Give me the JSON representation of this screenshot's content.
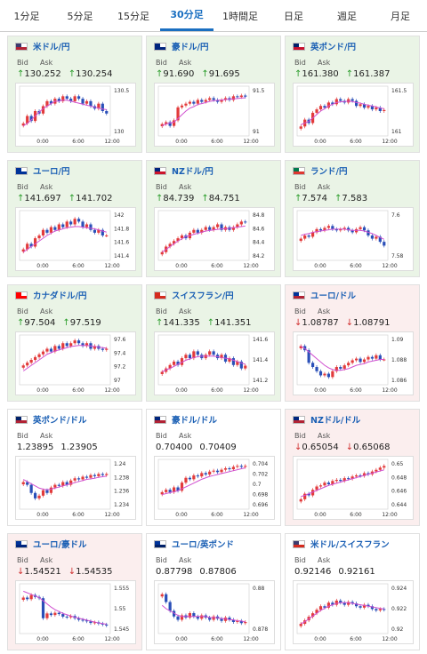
{
  "tabs": [
    {
      "label": "1分足",
      "active": false
    },
    {
      "label": "5分足",
      "active": false
    },
    {
      "label": "15分足",
      "active": false
    },
    {
      "label": "30分足",
      "active": true
    },
    {
      "label": "1時間足",
      "active": false
    },
    {
      "label": "日足",
      "active": false
    },
    {
      "label": "週足",
      "active": false
    },
    {
      "label": "月足",
      "active": false
    }
  ],
  "labels": {
    "bid": "Bid",
    "ask": "Ask"
  },
  "colors": {
    "up": "#2a9d2a",
    "down": "#d03030",
    "link": "#1a5fb4",
    "candle_up": "#e23b3b",
    "candle_down": "#2a4fb8",
    "ma": "#d050d0",
    "ma2": "#3aa0ff"
  },
  "cards": [
    {
      "pair": "米ドル/円",
      "trend": "up",
      "bid": "130.252",
      "ask": "130.254",
      "y_ticks": [
        "130.5",
        "130"
      ],
      "x_ticks": [
        "0:00",
        "6:00",
        "12:00"
      ],
      "flag": [
        "#3c3b6e",
        "#b22234"
      ],
      "chart_data": {
        "type": "candlestick",
        "ylim": [
          129.85,
          130.75
        ],
        "close": [
          130.05,
          130.2,
          130.1,
          130.3,
          130.25,
          130.4,
          130.5,
          130.45,
          130.55,
          130.5,
          130.6,
          130.55,
          130.5,
          130.6,
          130.55,
          130.45,
          130.5,
          130.4,
          130.35,
          130.45,
          130.3,
          130.25
        ],
        "ma": [
          130.0,
          130.05,
          130.12,
          130.2,
          130.28,
          130.35,
          130.4,
          130.45,
          130.5,
          130.5,
          130.52,
          130.52,
          130.5,
          130.48,
          130.46,
          130.44,
          130.42,
          130.4,
          130.38,
          130.36,
          130.34,
          130.33
        ]
      }
    },
    {
      "pair": "豪ドル/円",
      "trend": "up",
      "bid": "91.690",
      "ask": "91.695",
      "y_ticks": [
        "91.5",
        "91"
      ],
      "x_ticks": [
        "0:00",
        "6:00",
        "12:00"
      ],
      "flag": [
        "#00247d",
        "#00247d"
      ],
      "chart_data": {
        "type": "candlestick",
        "ylim": [
          90.7,
          91.9
        ],
        "close": [
          90.95,
          91.0,
          90.9,
          91.05,
          91.4,
          91.45,
          91.5,
          91.55,
          91.5,
          91.6,
          91.55,
          91.6,
          91.65,
          91.6,
          91.55,
          91.6,
          91.65,
          91.6,
          91.7,
          91.68,
          91.72,
          91.69
        ],
        "ma": [
          90.9,
          90.95,
          90.98,
          91.0,
          91.1,
          91.2,
          91.3,
          91.38,
          91.42,
          91.48,
          91.5,
          91.53,
          91.56,
          91.58,
          91.59,
          91.6,
          91.61,
          91.62,
          91.63,
          91.64,
          91.65,
          91.66
        ]
      }
    },
    {
      "pair": "英ポンド/円",
      "trend": "up",
      "bid": "161.380",
      "ask": "161.387",
      "y_ticks": [
        "161.5",
        "161"
      ],
      "x_ticks": [
        "0:00",
        "6:00",
        "12:00"
      ],
      "flag": [
        "#012169",
        "#c8102e"
      ],
      "chart_data": {
        "type": "candlestick",
        "ylim": [
          160.7,
          162.0
        ],
        "close": [
          160.9,
          161.1,
          161.0,
          161.3,
          161.4,
          161.5,
          161.45,
          161.6,
          161.55,
          161.7,
          161.65,
          161.6,
          161.7,
          161.65,
          161.5,
          161.55,
          161.45,
          161.5,
          161.4,
          161.45,
          161.35,
          161.38
        ],
        "ma": [
          160.95,
          161.0,
          161.05,
          161.15,
          161.25,
          161.35,
          161.42,
          161.5,
          161.55,
          161.6,
          161.62,
          161.63,
          161.64,
          161.63,
          161.6,
          161.58,
          161.55,
          161.52,
          161.5,
          161.47,
          161.44,
          161.42
        ]
      }
    },
    {
      "pair": "ユーロ/円",
      "trend": "up",
      "bid": "141.697",
      "ask": "141.702",
      "y_ticks": [
        "142",
        "141.8",
        "141.6",
        "141.4"
      ],
      "x_ticks": [
        "0:00",
        "6:00",
        "12:00"
      ],
      "flag": [
        "#003399",
        "#003399"
      ],
      "chart_data": {
        "type": "candlestick",
        "ylim": [
          141.3,
          142.1
        ],
        "close": [
          141.45,
          141.55,
          141.5,
          141.65,
          141.7,
          141.8,
          141.75,
          141.85,
          141.8,
          141.9,
          141.85,
          141.95,
          141.9,
          142.0,
          141.95,
          141.85,
          141.9,
          141.8,
          141.75,
          141.8,
          141.7,
          141.7
        ],
        "ma": [
          141.4,
          141.45,
          141.5,
          141.55,
          141.6,
          141.65,
          141.7,
          141.74,
          141.78,
          141.8,
          141.82,
          141.84,
          141.85,
          141.86,
          141.86,
          141.85,
          141.84,
          141.83,
          141.82,
          141.8,
          141.78,
          141.76
        ]
      }
    },
    {
      "pair": "NZドル/円",
      "trend": "up",
      "bid": "84.739",
      "ask": "84.751",
      "y_ticks": [
        "84.8",
        "84.6",
        "84.4",
        "84.2"
      ],
      "x_ticks": [
        "0:00",
        "6:00",
        "12:00"
      ],
      "flag": [
        "#00247d",
        "#cc142b"
      ],
      "chart_data": {
        "type": "candlestick",
        "ylim": [
          84.1,
          84.9
        ],
        "close": [
          84.2,
          84.3,
          84.35,
          84.4,
          84.45,
          84.5,
          84.45,
          84.55,
          84.6,
          84.55,
          84.6,
          84.65,
          84.6,
          84.65,
          84.7,
          84.6,
          84.65,
          84.6,
          84.65,
          84.7,
          84.75,
          84.74
        ],
        "ma": [
          84.2,
          84.25,
          84.3,
          84.35,
          84.4,
          84.44,
          84.48,
          84.5,
          84.52,
          84.54,
          84.56,
          84.58,
          84.59,
          84.6,
          84.61,
          84.62,
          84.62,
          84.63,
          84.64,
          84.65,
          84.66,
          84.67
        ]
      }
    },
    {
      "pair": "ランド/円",
      "trend": "up",
      "bid": "7.574",
      "ask": "7.583",
      "y_ticks": [
        "7.6",
        "7.58"
      ],
      "x_ticks": [
        "0:00",
        "6:00",
        "12:00"
      ],
      "flag": [
        "#007a4d",
        "#de3831"
      ],
      "chart_data": {
        "type": "candlestick",
        "ylim": [
          7.555,
          7.625
        ],
        "close": [
          7.585,
          7.59,
          7.588,
          7.595,
          7.6,
          7.598,
          7.602,
          7.605,
          7.6,
          7.598,
          7.6,
          7.602,
          7.598,
          7.595,
          7.6,
          7.603,
          7.598,
          7.59,
          7.585,
          7.588,
          7.58,
          7.574
        ],
        "ma": [
          7.59,
          7.592,
          7.593,
          7.595,
          7.596,
          7.597,
          7.598,
          7.599,
          7.6,
          7.6,
          7.6,
          7.6,
          7.599,
          7.598,
          7.598,
          7.598,
          7.597,
          7.595,
          7.593,
          7.59,
          7.587,
          7.584
        ]
      }
    },
    {
      "pair": "カナダドル/円",
      "trend": "up",
      "bid": "97.504",
      "ask": "97.519",
      "y_ticks": [
        "97.6",
        "97.4",
        "97.2",
        "97"
      ],
      "x_ticks": [
        "0:00",
        "6:00",
        "12:00"
      ],
      "flag": [
        "#ff0000",
        "#ff0000"
      ],
      "chart_data": {
        "type": "candlestick",
        "ylim": [
          96.9,
          97.7
        ],
        "close": [
          97.2,
          97.25,
          97.3,
          97.35,
          97.4,
          97.45,
          97.5,
          97.45,
          97.55,
          97.5,
          97.6,
          97.55,
          97.6,
          97.65,
          97.6,
          97.55,
          97.6,
          97.5,
          97.55,
          97.5,
          97.48,
          97.5
        ],
        "ma": [
          97.1,
          97.15,
          97.2,
          97.25,
          97.3,
          97.35,
          97.4,
          97.43,
          97.46,
          97.48,
          97.5,
          97.52,
          97.54,
          97.55,
          97.56,
          97.56,
          97.56,
          97.55,
          97.54,
          97.53,
          97.52,
          97.51
        ]
      }
    },
    {
      "pair": "スイスフラン/円",
      "trend": "up",
      "bid": "141.335",
      "ask": "141.351",
      "y_ticks": [
        "141.6",
        "141.4",
        "141.2"
      ],
      "x_ticks": [
        "0:00",
        "6:00",
        "12:00"
      ],
      "flag": [
        "#d52b1e",
        "#d52b1e"
      ],
      "chart_data": {
        "type": "candlestick",
        "ylim": [
          141.1,
          141.75
        ],
        "close": [
          141.25,
          141.3,
          141.35,
          141.4,
          141.35,
          141.45,
          141.5,
          141.45,
          141.55,
          141.5,
          141.45,
          141.5,
          141.55,
          141.5,
          141.45,
          141.5,
          141.4,
          141.45,
          141.35,
          141.4,
          141.3,
          141.34
        ],
        "ma": [
          141.25,
          141.28,
          141.3,
          141.33,
          141.36,
          141.39,
          141.42,
          141.44,
          141.46,
          141.47,
          141.48,
          141.48,
          141.48,
          141.48,
          141.47,
          141.46,
          141.45,
          141.44,
          141.42,
          141.4,
          141.38,
          141.36
        ]
      }
    },
    {
      "pair": "ユーロ/ドル",
      "trend": "down",
      "bid": "1.08787",
      "ask": "1.08791",
      "y_ticks": [
        "1.09",
        "1.088",
        "1.086"
      ],
      "x_ticks": [
        "0:00",
        "6:00",
        "12:00"
      ],
      "flag": [
        "#003399",
        "#b22234"
      ],
      "chart_data": {
        "type": "candlestick",
        "ylim": [
          1.0852,
          1.0905
        ],
        "close": [
          1.0895,
          1.089,
          1.0875,
          1.087,
          1.0865,
          1.086,
          1.0862,
          1.0858,
          1.0865,
          1.087,
          1.0868,
          1.0872,
          1.0875,
          1.0878,
          1.088,
          1.0876,
          1.0879,
          1.0882,
          1.088,
          1.0884,
          1.0879,
          1.0879
        ],
        "ma": [
          1.0895,
          1.0892,
          1.0888,
          1.0884,
          1.088,
          1.0876,
          1.0872,
          1.0869,
          1.0867,
          1.0866,
          1.0866,
          1.0867,
          1.0868,
          1.087,
          1.0872,
          1.0873,
          1.0874,
          1.0876,
          1.0877,
          1.0878,
          1.0879,
          1.0879
        ]
      }
    },
    {
      "pair": "英ポンド/ドル",
      "trend": "flat",
      "bid": "1.23895",
      "ask": "1.23905",
      "y_ticks": [
        "1.24",
        "1.238",
        "1.236",
        "1.234"
      ],
      "x_ticks": [
        "0:00",
        "6:00",
        "12:00"
      ],
      "flag": [
        "#012169",
        "#b22234"
      ],
      "chart_data": {
        "type": "candlestick",
        "ylim": [
          1.233,
          1.2412
        ],
        "close": [
          1.2375,
          1.237,
          1.2355,
          1.2345,
          1.235,
          1.236,
          1.2355,
          1.2365,
          1.237,
          1.2368,
          1.2375,
          1.237,
          1.2378,
          1.2382,
          1.238,
          1.2385,
          1.2383,
          1.2388,
          1.2386,
          1.239,
          1.2388,
          1.239
        ],
        "ma": [
          1.238,
          1.2376,
          1.2372,
          1.2368,
          1.2364,
          1.2362,
          1.2361,
          1.2362,
          1.2364,
          1.2366,
          1.2368,
          1.237,
          1.2372,
          1.2374,
          1.2376,
          1.2378,
          1.238,
          1.2381,
          1.2382,
          1.2384,
          1.2385,
          1.2386
        ]
      }
    },
    {
      "pair": "豪ドル/ドル",
      "trend": "flat",
      "bid": "0.70400",
      "ask": "0.70409",
      "y_ticks": [
        "0.704",
        "0.702",
        "0.7",
        "0.698",
        "0.696"
      ],
      "x_ticks": [
        "0:00",
        "6:00",
        "12:00"
      ],
      "flag": [
        "#00247d",
        "#b22234"
      ],
      "chart_data": {
        "type": "candlestick",
        "ylim": [
          0.6955,
          0.7048
        ],
        "close": [
          0.6985,
          0.699,
          0.6985,
          0.6995,
          0.6988,
          0.7005,
          0.7015,
          0.7012,
          0.702,
          0.7018,
          0.7025,
          0.7022,
          0.7028,
          0.703,
          0.7027,
          0.7032,
          0.7035,
          0.7033,
          0.7038,
          0.704,
          0.7038,
          0.704
        ],
        "ma": [
          0.698,
          0.6982,
          0.6984,
          0.6986,
          0.6988,
          0.6992,
          0.6996,
          0.7,
          0.7004,
          0.7008,
          0.7012,
          0.7015,
          0.7018,
          0.702,
          0.7022,
          0.7024,
          0.7026,
          0.7028,
          0.703,
          0.7032,
          0.7034,
          0.7036
        ]
      }
    },
    {
      "pair": "NZドル/ドル",
      "trend": "down",
      "bid": "0.65054",
      "ask": "0.65068",
      "y_ticks": [
        "0.65",
        "0.648",
        "0.646",
        "0.644"
      ],
      "x_ticks": [
        "0:00",
        "6:00",
        "12:00"
      ],
      "flag": [
        "#00247d",
        "#b22234"
      ],
      "chart_data": {
        "type": "candlestick",
        "ylim": [
          0.6432,
          0.6512
        ],
        "close": [
          0.6445,
          0.6455,
          0.6452,
          0.6462,
          0.6468,
          0.647,
          0.6475,
          0.6472,
          0.6478,
          0.648,
          0.6478,
          0.6483,
          0.6482,
          0.6486,
          0.6488,
          0.6487,
          0.6492,
          0.649,
          0.6495,
          0.6498,
          0.6502,
          0.6505
        ],
        "ma": [
          0.645,
          0.6452,
          0.6455,
          0.6458,
          0.6461,
          0.6464,
          0.6467,
          0.647,
          0.6472,
          0.6474,
          0.6476,
          0.6478,
          0.648,
          0.6482,
          0.6484,
          0.6486,
          0.6488,
          0.649,
          0.6492,
          0.6494,
          0.6496,
          0.6498
        ]
      }
    },
    {
      "pair": "ユーロ/豪ドル",
      "trend": "down",
      "bid": "1.54521",
      "ask": "1.54535",
      "y_ticks": [
        "1.555",
        "1.55",
        "1.545"
      ],
      "x_ticks": [
        "0:00",
        "6:00",
        "12:00"
      ],
      "flag": [
        "#003399",
        "#00247d"
      ],
      "chart_data": {
        "type": "candlestick",
        "ylim": [
          1.5435,
          1.5575
        ],
        "close": [
          1.554,
          1.5535,
          1.5548,
          1.5542,
          1.5538,
          1.5475,
          1.549,
          1.5485,
          1.5492,
          1.5488,
          1.548,
          1.5478,
          1.5482,
          1.5475,
          1.547,
          1.5468,
          1.5465,
          1.546,
          1.5462,
          1.5458,
          1.5455,
          1.5452
        ],
        "ma": [
          1.556,
          1.5555,
          1.555,
          1.5545,
          1.554,
          1.553,
          1.552,
          1.551,
          1.5502,
          1.5496,
          1.549,
          1.5486,
          1.5482,
          1.5478,
          1.5475,
          1.5472,
          1.5469,
          1.5466,
          1.5463,
          1.546,
          1.5458,
          1.5456
        ]
      }
    },
    {
      "pair": "ユーロ/英ポンド",
      "trend": "flat",
      "bid": "0.87798",
      "ask": "0.87806",
      "y_ticks": [
        "0.88",
        "0.878"
      ],
      "x_ticks": [
        "0:00",
        "6:00",
        "12:00"
      ],
      "flag": [
        "#003399",
        "#012169"
      ],
      "chart_data": {
        "type": "candlestick",
        "ylim": [
          0.8772,
          0.8812
        ],
        "close": [
          0.8805,
          0.8798,
          0.879,
          0.8785,
          0.8782,
          0.8786,
          0.8784,
          0.8788,
          0.8785,
          0.8783,
          0.8786,
          0.8784,
          0.8782,
          0.8785,
          0.8783,
          0.8781,
          0.8784,
          0.8782,
          0.878,
          0.8781,
          0.8779,
          0.878
        ],
        "ma": [
          0.8795,
          0.8792,
          0.879,
          0.8788,
          0.8786,
          0.8785,
          0.8785,
          0.8785,
          0.8785,
          0.8785,
          0.8785,
          0.8785,
          0.8784,
          0.8784,
          0.8784,
          0.8783,
          0.8783,
          0.8782,
          0.8782,
          0.8781,
          0.8781,
          0.878
        ]
      }
    },
    {
      "pair": "米ドル/スイスフラン",
      "trend": "flat",
      "bid": "0.92146",
      "ask": "0.92161",
      "y_ticks": [
        "0.924",
        "0.922",
        "0.92"
      ],
      "x_ticks": [
        "0:00",
        "6:00",
        "12:00"
      ],
      "flag": [
        "#3c3b6e",
        "#d52b1e"
      ],
      "chart_data": {
        "type": "candlestick",
        "ylim": [
          0.9185,
          0.9248
        ],
        "close": [
          0.9195,
          0.92,
          0.9205,
          0.921,
          0.9215,
          0.922,
          0.9218,
          0.9225,
          0.9222,
          0.9228,
          0.9225,
          0.9222,
          0.9226,
          0.9224,
          0.922,
          0.9218,
          0.9222,
          0.922,
          0.9216,
          0.9214,
          0.9216,
          0.9215
        ],
        "ma": [
          0.9195,
          0.9198,
          0.9202,
          0.9206,
          0.921,
          0.9214,
          0.9217,
          0.922,
          0.9222,
          0.9224,
          0.9225,
          0.9225,
          0.9225,
          0.9224,
          0.9223,
          0.9222,
          0.9221,
          0.922,
          0.9219,
          0.9218,
          0.9217,
          0.9216
        ]
      }
    }
  ]
}
